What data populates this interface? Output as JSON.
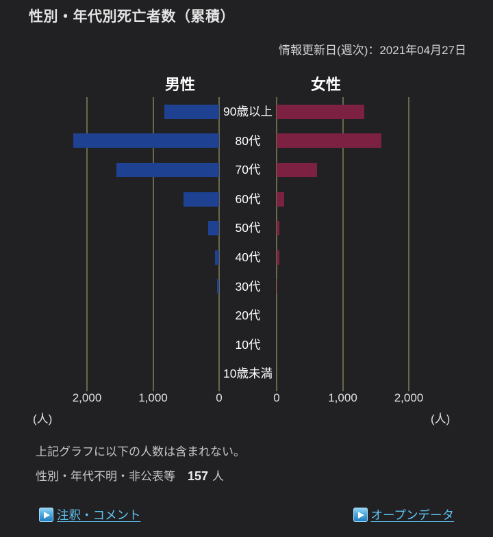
{
  "header": {
    "title": "性別・年代別死亡者数（累積）",
    "updated": "情報更新日(週次)：2021年04月27日"
  },
  "chart_data": {
    "type": "bar",
    "orientation": "diverging-horizontal",
    "title": "性別・年代別死亡者数（累積）",
    "categories": [
      "90歳以上",
      "80代",
      "70代",
      "60代",
      "50代",
      "40代",
      "30代",
      "20代",
      "10代",
      "10歳未満"
    ],
    "series": [
      {
        "name": "男性",
        "color": "#1e4291",
        "values": [
          830,
          2210,
          1550,
          540,
          165,
          62,
          30,
          0,
          0,
          0
        ]
      },
      {
        "name": "女性",
        "color": "#7d2143",
        "values": [
          1330,
          1590,
          615,
          117,
          45,
          42,
          15,
          0,
          0,
          0
        ]
      }
    ],
    "axis": {
      "ticks": [
        0,
        1000,
        2000
      ],
      "tick_labels": [
        "0",
        "1,000",
        "2,000"
      ],
      "max": 2650,
      "unit": "（人）",
      "unit_display": "(人)"
    },
    "gridlines": true,
    "gridline_color": "#6b6849",
    "legend_position": "top"
  },
  "footnote": {
    "line1": "上記グラフに以下の人数は含まれない。",
    "line2_label": "性別・年代不明・非公表等",
    "line2_value": "157",
    "line2_unit": "人"
  },
  "links": {
    "left": "注釈・コメント",
    "right": "オープンデータ"
  },
  "colors": {
    "background": "#212124",
    "male_bar": "#1e4291",
    "female_bar": "#7d2143",
    "gridline": "#6b6849",
    "link": "#5fc4f1",
    "text": "#e3e3e3"
  }
}
